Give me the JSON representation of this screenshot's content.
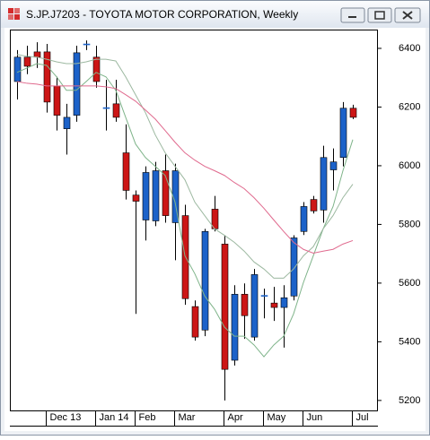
{
  "chart_data": {
    "type": "candlestick",
    "title": "S.JP.J7203 - TOYOTA MOTOR CORPORATION, Weekly",
    "categories": [
      null,
      null,
      null,
      "Dec 13",
      null,
      null,
      null,
      null,
      "Jan 14",
      null,
      null,
      null,
      "Feb",
      null,
      null,
      null,
      "Mar",
      null,
      null,
      null,
      null,
      "Apr",
      null,
      null,
      null,
      "May",
      null,
      null,
      null,
      "Jun",
      null,
      null,
      null,
      null,
      "Jul"
    ],
    "open": [
      6287,
      6370,
      6388,
      6388,
      6272,
      6126,
      6172,
      6412,
      6370,
      6196,
      6211,
      6044,
      5900,
      5815,
      5812,
      5983,
      5806,
      5830,
      5520,
      5440,
      5852,
      5733,
      5337,
      5562,
      5416,
      5556,
      5532,
      5517,
      5556,
      5776,
      5885,
      5849,
      5986,
      6028,
      6196
    ],
    "high": [
      6394,
      6409,
      6421,
      6415,
      6303,
      6211,
      6409,
      6427,
      6409,
      6293,
      6293,
      6141,
      5916,
      5998,
      6013,
      6038,
      6007,
      5867,
      5541,
      5785,
      5897,
      5763,
      5593,
      5599,
      5648,
      5581,
      5587,
      5593,
      5763,
      5876,
      5897,
      6068,
      6059,
      6217,
      6208
    ],
    "low": [
      6226,
      6312,
      6333,
      6181,
      6120,
      6038,
      6150,
      6394,
      6266,
      6120,
      6150,
      5885,
      5495,
      5745,
      5794,
      5806,
      5678,
      5526,
      5404,
      5419,
      5776,
      5200,
      5319,
      5410,
      5404,
      5480,
      5471,
      5380,
      5541,
      5764,
      5837,
      5806,
      5916,
      5998,
      6159
    ],
    "close": [
      6370,
      6339,
      6370,
      6217,
      6172,
      6165,
      6385,
      6415,
      6287,
      6198,
      6165,
      5916,
      5879,
      5977,
      5983,
      5830,
      5983,
      5547,
      5416,
      5776,
      5785,
      5306,
      5562,
      5489,
      5629,
      5558,
      5517,
      5550,
      5754,
      5861,
      5846,
      6028,
      6013,
      6196,
      6165
    ],
    "up_color": "#1c62c9",
    "down_color": "#cc1616",
    "lines": [
      {
        "color": "#7fb48a",
        "values": [
          6318,
          6333,
          6348,
          6342,
          6303,
          6257,
          6257,
          6287,
          6318,
          6303,
          6257,
          6165,
          6074,
          6028,
          5998,
          5967,
          5876,
          5693,
          5632,
          5556,
          5511,
          5450,
          5419,
          5419,
          5389,
          5349,
          5389,
          5419,
          5495,
          5602,
          5693,
          5785,
          5861,
          5983,
          6089
        ]
      },
      {
        "color": "#9cb8a0",
        "values": [
          6379,
          6373,
          6370,
          6363,
          6354,
          6348,
          6348,
          6354,
          6363,
          6363,
          6357,
          6303,
          6242,
          6181,
          6105,
          6044,
          5998,
          5952,
          5876,
          5830,
          5785,
          5763,
          5739,
          5709,
          5672,
          5648,
          5617,
          5617,
          5648,
          5693,
          5724,
          5785,
          5830,
          5891,
          5937
        ]
      },
      {
        "color": "#e06a8e",
        "values": [
          6287,
          6281,
          6278,
          6272,
          6272,
          6272,
          6272,
          6272,
          6272,
          6269,
          6263,
          6242,
          6220,
          6190,
          6159,
          6120,
          6080,
          6044,
          6019,
          5998,
          5983,
          5967,
          5943,
          5922,
          5891,
          5855,
          5815,
          5776,
          5739,
          5715,
          5702,
          5709,
          5715,
          5733,
          5745
        ]
      }
    ],
    "ylim": [
      5166,
      6461
    ],
    "yticks": [
      5200,
      5400,
      5600,
      5800,
      6000,
      6200,
      6400
    ]
  }
}
